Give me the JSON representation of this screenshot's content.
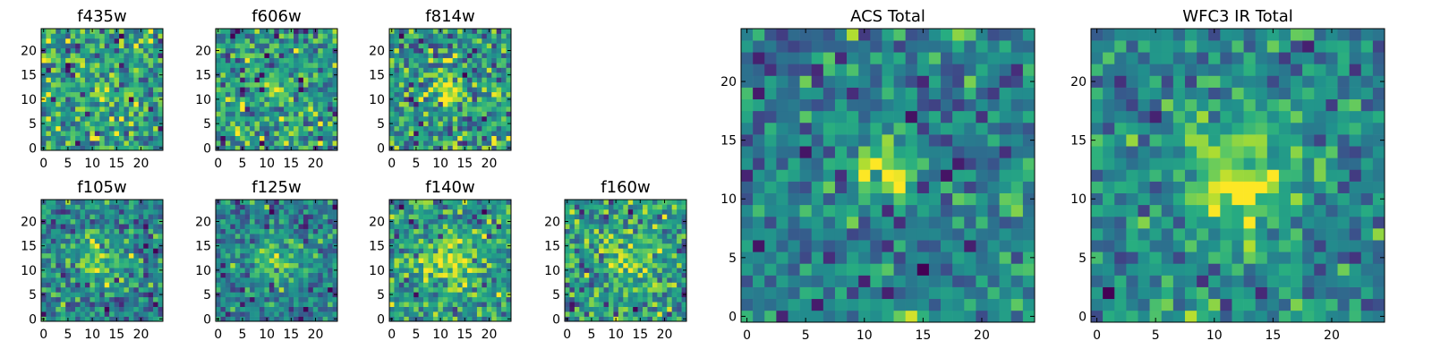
{
  "chart_data": [
    {
      "type": "heatmap",
      "title": "f435w",
      "colormap": "viridis",
      "grid_size": [
        25,
        25
      ],
      "x_ticks": [
        0,
        5,
        10,
        15,
        20
      ],
      "y_ticks": [
        0,
        5,
        10,
        15,
        20
      ],
      "xlim": [
        -0.5,
        24.5
      ],
      "ylim": [
        -0.5,
        24.5
      ],
      "source_center": [
        12,
        12
      ],
      "source_width": 1.6,
      "source_amp": 1.6,
      "noise": 1.0,
      "seed": 11
    },
    {
      "type": "heatmap",
      "title": "f606w",
      "colormap": "viridis",
      "grid_size": [
        25,
        25
      ],
      "x_ticks": [
        0,
        5,
        10,
        15,
        20
      ],
      "y_ticks": [
        0,
        5,
        10,
        15,
        20
      ],
      "xlim": [
        -0.5,
        24.5
      ],
      "ylim": [
        -0.5,
        24.5
      ],
      "source_center": [
        12,
        12
      ],
      "source_width": 1.6,
      "source_amp": 1.6,
      "noise": 1.0,
      "seed": 23
    },
    {
      "type": "heatmap",
      "title": "f814w",
      "colormap": "viridis",
      "grid_size": [
        25,
        25
      ],
      "x_ticks": [
        0,
        5,
        10,
        15,
        20
      ],
      "y_ticks": [
        0,
        5,
        10,
        15,
        20
      ],
      "xlim": [
        -0.5,
        24.5
      ],
      "ylim": [
        -0.5,
        24.5
      ],
      "source_center": [
        12,
        12
      ],
      "source_width": 2.0,
      "source_amp": 1.8,
      "noise": 1.0,
      "seed": 37
    },
    {
      "type": "heatmap",
      "title": "f105w",
      "colormap": "viridis",
      "grid_size": [
        25,
        25
      ],
      "x_ticks": [
        0,
        5,
        10,
        15,
        20
      ],
      "y_ticks": [
        0,
        5,
        10,
        15,
        20
      ],
      "xlim": [
        -0.5,
        24.5
      ],
      "ylim": [
        -0.5,
        24.5
      ],
      "source_center": [
        12,
        12
      ],
      "source_width": 3.2,
      "source_amp": 1.8,
      "noise": 0.9,
      "seed": 41
    },
    {
      "type": "heatmap",
      "title": "f125w",
      "colormap": "viridis",
      "grid_size": [
        25,
        25
      ],
      "x_ticks": [
        0,
        5,
        10,
        15,
        20
      ],
      "y_ticks": [
        0,
        5,
        10,
        15,
        20
      ],
      "xlim": [
        -0.5,
        24.5
      ],
      "ylim": [
        -0.5,
        24.5
      ],
      "source_center": [
        12,
        12
      ],
      "source_width": 3.4,
      "source_amp": 1.8,
      "noise": 0.9,
      "seed": 53
    },
    {
      "type": "heatmap",
      "title": "f140w",
      "colormap": "viridis",
      "grid_size": [
        25,
        25
      ],
      "x_ticks": [
        0,
        5,
        10,
        15,
        20
      ],
      "y_ticks": [
        0,
        5,
        10,
        15,
        20
      ],
      "xlim": [
        -0.5,
        24.5
      ],
      "ylim": [
        -0.5,
        24.5
      ],
      "source_center": [
        12,
        12
      ],
      "source_width": 3.4,
      "source_amp": 1.7,
      "noise": 0.9,
      "seed": 67
    },
    {
      "type": "heatmap",
      "title": "f160w",
      "colormap": "viridis",
      "grid_size": [
        25,
        25
      ],
      "x_ticks": [
        0,
        5,
        10,
        15,
        20
      ],
      "y_ticks": [
        0,
        5,
        10,
        15,
        20
      ],
      "xlim": [
        -0.5,
        24.5
      ],
      "ylim": [
        -0.5,
        24.5
      ],
      "source_center": [
        12,
        12
      ],
      "source_width": 3.0,
      "source_amp": 1.7,
      "noise": 1.0,
      "seed": 79
    },
    {
      "type": "heatmap",
      "title": "ACS Total",
      "colormap": "viridis",
      "grid_size": [
        25,
        25
      ],
      "x_ticks": [
        0,
        5,
        10,
        15,
        20
      ],
      "y_ticks": [
        0,
        5,
        10,
        15,
        20
      ],
      "xlim": [
        -0.5,
        24.5
      ],
      "ylim": [
        -0.5,
        24.5
      ],
      "source_center": [
        11.5,
        12.5
      ],
      "source_width": 1.8,
      "source_amp": 2.2,
      "noise": 0.8,
      "seed": 97
    },
    {
      "type": "heatmap",
      "title": "WFC3 IR Total",
      "colormap": "viridis",
      "grid_size": [
        25,
        25
      ],
      "x_ticks": [
        0,
        5,
        10,
        15,
        20
      ],
      "y_ticks": [
        0,
        5,
        10,
        15,
        20
      ],
      "xlim": [
        -0.5,
        24.5
      ],
      "ylim": [
        -0.5,
        24.5
      ],
      "source_center": [
        12,
        12
      ],
      "source_width": 3.2,
      "source_amp": 2.0,
      "noise": 0.6,
      "seed": 113
    }
  ]
}
